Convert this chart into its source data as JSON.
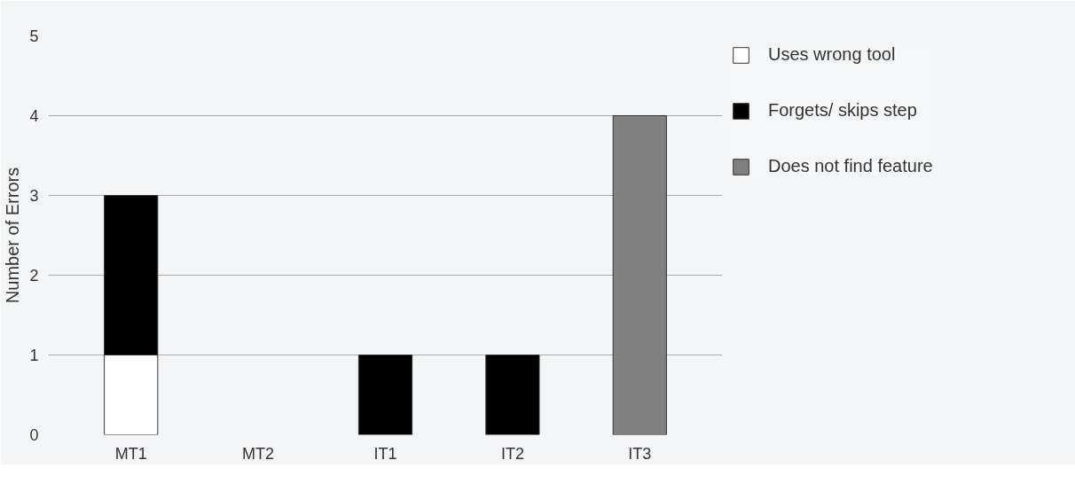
{
  "chart_data": {
    "type": "bar",
    "stacked": true,
    "ylabel": "Number of Errors",
    "categories": [
      "MT1",
      "MT2",
      "IT1",
      "IT2",
      "IT3"
    ],
    "series": [
      {
        "name": "Uses wrong tool",
        "color": "#ffffff",
        "values": [
          1,
          0,
          0,
          0,
          0
        ]
      },
      {
        "name": "Forgets/ skips step",
        "color": "#000000",
        "values": [
          2,
          0,
          1,
          1,
          0
        ]
      },
      {
        "name": "Does not find feature",
        "color": "#808080",
        "values": [
          0,
          0,
          0,
          0,
          4
        ]
      }
    ],
    "ylim": [
      0,
      5
    ],
    "yticks": [
      0,
      1,
      2,
      3,
      4,
      5
    ],
    "grid": "y",
    "legend": "right"
  }
}
